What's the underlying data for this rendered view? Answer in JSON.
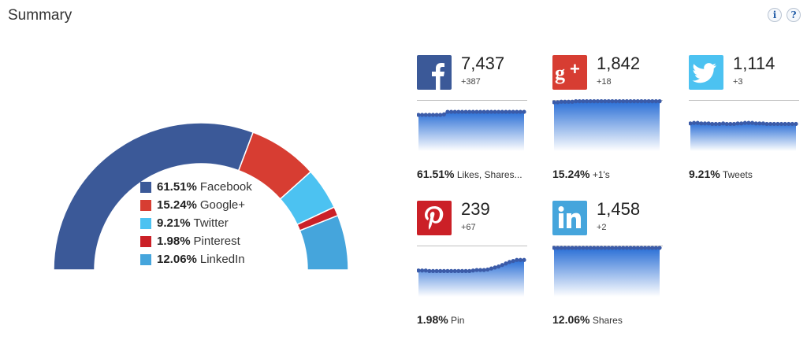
{
  "header": {
    "title": "Summary",
    "info_label": "i",
    "help_label": "?"
  },
  "colors": {
    "facebook": "#3b5998",
    "google": "#d73d32",
    "twitter": "#4cc2f1",
    "pinterest": "#cb2027",
    "linkedin": "#45a5dc"
  },
  "chart_data": {
    "type": "pie",
    "variant": "semi-donut",
    "series": [
      {
        "name": "Facebook",
        "value": 61.51,
        "label": "61.51%"
      },
      {
        "name": "Google+",
        "value": 15.24,
        "label": "15.24%"
      },
      {
        "name": "Twitter",
        "value": 9.21,
        "label": "9.21%"
      },
      {
        "name": "Pinterest",
        "value": 1.98,
        "label": "1.98%"
      },
      {
        "name": "LinkedIn",
        "value": 12.06,
        "label": "12.06%"
      }
    ],
    "legend_placement": "center"
  },
  "networks": [
    {
      "key": "facebook",
      "icon": "facebook-icon",
      "count": "7,437",
      "delta": "+387",
      "pct": "61.51%",
      "caption": "Likes, Shares...",
      "trend": [
        0.72,
        0.72,
        0.72,
        0.72,
        0.72,
        0.72,
        0.72,
        0.73,
        0.78,
        0.78,
        0.78,
        0.78,
        0.78,
        0.78,
        0.78,
        0.78,
        0.78,
        0.78,
        0.78,
        0.78,
        0.78,
        0.78,
        0.78,
        0.78,
        0.78,
        0.78,
        0.78,
        0.78,
        0.78,
        0.78
      ]
    },
    {
      "key": "google",
      "icon": "google-plus-icon",
      "count": "1,842",
      "delta": "+18",
      "pct": "15.24%",
      "caption": "+1's",
      "trend": [
        0.97,
        0.97,
        0.98,
        0.98,
        0.98,
        0.98,
        0.99,
        0.99,
        0.99,
        0.99,
        0.99,
        0.99,
        0.99,
        0.99,
        0.99,
        0.99,
        0.99,
        0.99,
        0.99,
        0.99,
        0.99,
        0.99,
        0.99,
        0.99,
        0.99,
        0.99,
        0.99,
        0.99,
        0.99,
        0.99
      ]
    },
    {
      "key": "twitter",
      "icon": "twitter-bird-icon",
      "count": "1,114",
      "delta": "+3",
      "pct": "9.21%",
      "caption": "Tweets",
      "trend": [
        0.55,
        0.56,
        0.56,
        0.55,
        0.55,
        0.55,
        0.54,
        0.54,
        0.54,
        0.55,
        0.54,
        0.54,
        0.54,
        0.55,
        0.55,
        0.56,
        0.56,
        0.56,
        0.55,
        0.55,
        0.55,
        0.54,
        0.54,
        0.54,
        0.54,
        0.54,
        0.54,
        0.54,
        0.54,
        0.54
      ]
    },
    {
      "key": "pinterest",
      "icon": "pinterest-icon",
      "count": "239",
      "delta": "+67",
      "pct": "1.98%",
      "caption": "Pin",
      "trend": [
        0.52,
        0.52,
        0.52,
        0.51,
        0.51,
        0.51,
        0.51,
        0.51,
        0.51,
        0.51,
        0.51,
        0.51,
        0.51,
        0.51,
        0.51,
        0.52,
        0.53,
        0.53,
        0.53,
        0.54,
        0.56,
        0.58,
        0.6,
        0.63,
        0.66,
        0.69,
        0.71,
        0.73,
        0.73,
        0.73
      ]
    },
    {
      "key": "linkedin",
      "icon": "linkedin-icon",
      "count": "1,458",
      "delta": "+2",
      "pct": "12.06%",
      "caption": "Shares",
      "trend": [
        0.97,
        0.97,
        0.97,
        0.97,
        0.97,
        0.97,
        0.97,
        0.97,
        0.97,
        0.97,
        0.97,
        0.97,
        0.97,
        0.97,
        0.97,
        0.97,
        0.97,
        0.97,
        0.97,
        0.97,
        0.97,
        0.97,
        0.97,
        0.97,
        0.97,
        0.97,
        0.97,
        0.97,
        0.97,
        0.97
      ]
    }
  ]
}
